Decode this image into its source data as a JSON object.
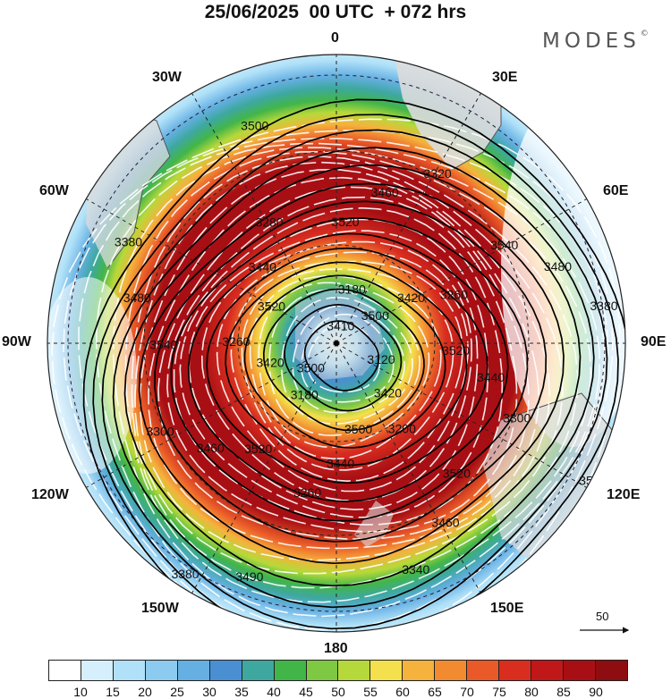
{
  "header": {
    "title": "25/06/2025  00 UTC  + 072 hrs",
    "brand": "MODES",
    "brand_mark": "©"
  },
  "map": {
    "projection": "polar stereographic",
    "center": "South Pole",
    "longitude_labels": [
      "0",
      "30E",
      "60E",
      "90E",
      "120E",
      "150E",
      "180",
      "150W",
      "120W",
      "90W",
      "60W",
      "30W"
    ],
    "contour_labels": [
      "3120",
      "3180",
      "3180",
      "3200",
      "3260",
      "3260",
      "3260",
      "3280",
      "3300",
      "3300",
      "3320",
      "3340",
      "3380",
      "3380",
      "3380",
      "3410",
      "3420",
      "3420",
      "3420",
      "3440",
      "3440",
      "3440",
      "3460",
      "3460",
      "3460",
      "3480",
      "3480",
      "3490",
      "3500",
      "3500",
      "3500",
      "3500",
      "3500",
      "3520",
      "3520",
      "3520",
      "3520",
      "3520",
      "3540",
      "3540"
    ],
    "reference_vector_label": "50",
    "colors": {
      "land": "#dcdcdc",
      "contour": "#000000",
      "streamline": "#ffffff",
      "graticule": "#000000"
    }
  },
  "colorbar": {
    "ticks": [
      "10",
      "15",
      "20",
      "25",
      "30",
      "35",
      "40",
      "45",
      "50",
      "55",
      "60",
      "65",
      "70",
      "75",
      "80",
      "85",
      "90"
    ],
    "colors": [
      "#ffffff",
      "#d6effc",
      "#b0e1f8",
      "#8ccbef",
      "#65afe3",
      "#4a8fd1",
      "#3ea8a0",
      "#42b549",
      "#7ec843",
      "#b5d93a",
      "#f4e04c",
      "#f5b23c",
      "#f28b30",
      "#ea5a28",
      "#d92d20",
      "#c01818",
      "#a80f14",
      "#8e0d10"
    ]
  }
}
